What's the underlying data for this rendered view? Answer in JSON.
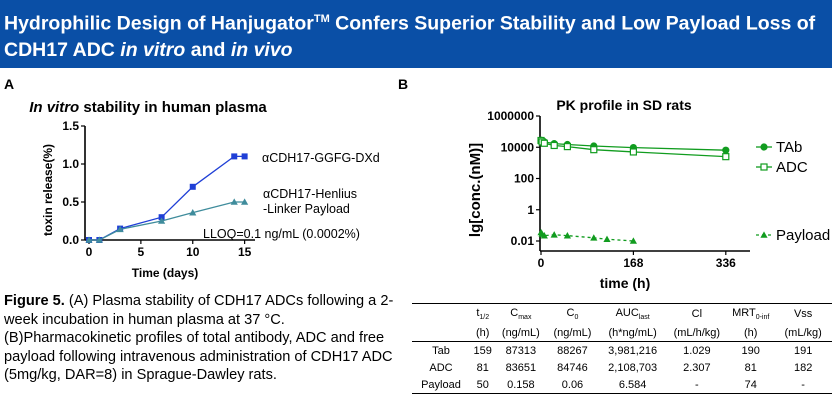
{
  "banner": {
    "title_part1": "Hydrophilic Design of Hanjugator",
    "title_tm": "TM",
    "title_part2": " Confers Superior Stability and Low Payload Loss of CDH17 ADC ",
    "title_italic1": "in vitro",
    "title_part3": " and ",
    "title_italic2": "in vivo",
    "background": "#0a4fa6"
  },
  "panel_a": {
    "label": "A"
  },
  "panel_b": {
    "label": "B"
  },
  "caption": {
    "figure_label": "Figure 5.",
    "text": " (A) Plasma stability of CDH17 ADCs following a 2-week incubation in human plasma at 37 °C. (B)Pharmacokinetic profiles of total antibody, ADC and free payload following intravenous administration of CDH17 ADC (5mg/kg, DAR=8) in Sprague-Dawley rats."
  },
  "chart_data": [
    {
      "type": "line",
      "title_italic": "In vitro",
      "title_rest": " stability in  human plasma",
      "xlabel": "Time (days)",
      "ylabel": "toxin release(%)",
      "xlim": [
        0,
        16
      ],
      "ylim": [
        0,
        1.5
      ],
      "xticks": [
        0,
        5,
        10,
        15
      ],
      "yticks": [
        "0.0",
        "0.5",
        "1.0",
        "1.5"
      ],
      "annotation": "LLOQ=0.1 ng/mL (0.0002%)",
      "series": [
        {
          "name": "αCDH17-GGFG-DXd",
          "color": "#1f3fd6",
          "marker": "square",
          "x": [
            0,
            1,
            3,
            7,
            10,
            14,
            15
          ],
          "y": [
            0.0,
            0.0,
            0.15,
            0.3,
            0.7,
            1.1,
            1.1
          ]
        },
        {
          "name": "αCDH17-Henlius\n-Linker Payload",
          "color": "#3f8c9c",
          "marker": "triangle",
          "x": [
            0,
            1,
            3,
            7,
            10,
            14,
            15
          ],
          "y": [
            0.0,
            0.0,
            0.14,
            0.25,
            0.36,
            0.5,
            0.5
          ]
        }
      ]
    },
    {
      "type": "line",
      "scale": "log",
      "title": "PK profile in SD rats",
      "xlabel": "time (h)",
      "ylabel": "lg[conc.(nM)]",
      "xlim": [
        0,
        380
      ],
      "ylim": [
        0.01,
        1000000
      ],
      "xticks": [
        "0",
        "168",
        "336"
      ],
      "yticks": [
        "0.01",
        "1",
        "100",
        "10000",
        "1000000"
      ],
      "series": [
        {
          "name": "TAb",
          "color": "#119c1f",
          "marker": "circle-filled",
          "dashed": false,
          "x": [
            0.083,
            2,
            6,
            24,
            48,
            96,
            168,
            336
          ],
          "y": [
            28000,
            26000,
            22000,
            17000,
            15000,
            12000,
            9500,
            6500
          ]
        },
        {
          "name": "ADC",
          "color": "#119c1f",
          "marker": "square-open",
          "dashed": false,
          "x": [
            0.083,
            2,
            6,
            24,
            48,
            96,
            168,
            336
          ],
          "y": [
            27000,
            22000,
            18000,
            13000,
            11000,
            7000,
            5000,
            2500
          ]
        },
        {
          "name": "Payload",
          "color": "#119c1f",
          "marker": "triangle-filled",
          "dashed": true,
          "x": [
            0.083,
            2,
            6,
            24,
            48,
            96,
            120,
            168
          ],
          "y": [
            0.035,
            0.028,
            0.022,
            0.025,
            0.022,
            0.016,
            0.013,
            0.01
          ]
        }
      ]
    },
    {
      "type": "table",
      "header_row1": [
        "",
        "t1/2",
        "Cmax",
        "C0",
        "AUClast",
        "Cl",
        "MRT0-inf",
        "Vss"
      ],
      "header_row2": [
        "",
        "(h)",
        "(ng/mL)",
        "(ng/mL)",
        "(h*ng/mL)",
        "(mL/h/kg)",
        "(h)",
        "(mL/kg)"
      ],
      "rows": [
        [
          "Tab",
          "159",
          "87313",
          "88267",
          "3,981,216",
          "1.029",
          "190",
          "191"
        ],
        [
          "ADC",
          "81",
          "83651",
          "84746",
          "2,108,703",
          "2.307",
          "81",
          "182"
        ],
        [
          "Payload",
          "50",
          "0.158",
          "0.06",
          "6.584",
          "-",
          "74",
          "-"
        ]
      ]
    }
  ]
}
